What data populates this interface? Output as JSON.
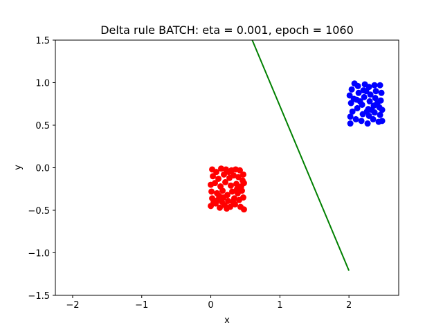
{
  "chart_data": {
    "type": "scatter",
    "title": "Delta rule BATCH: eta = 0.001, epoch = 1060",
    "xlabel": "x",
    "ylabel": "y",
    "xlim": [
      -2.25,
      2.72
    ],
    "ylim": [
      -1.5,
      1.5
    ],
    "xticks": [
      -2,
      -1,
      0,
      1,
      2
    ],
    "yticks": [
      -1.5,
      -1.0,
      -0.5,
      0.0,
      0.5,
      1.0,
      1.5
    ],
    "xtick_labels": [
      "−2",
      "−1",
      "0",
      "1",
      "2"
    ],
    "ytick_labels": [
      "−1.5",
      "−1.0",
      "−0.5",
      "0.0",
      "0.5",
      "1.0",
      "1.5"
    ],
    "grid": false,
    "series": [
      {
        "color": "#ff0000",
        "points": [
          [
            0.02,
            -0.02
          ],
          [
            0.08,
            -0.05
          ],
          [
            0.15,
            -0.01
          ],
          [
            0.22,
            -0.02
          ],
          [
            0.3,
            -0.03
          ],
          [
            0.36,
            -0.02
          ],
          [
            0.42,
            -0.03
          ],
          [
            0.47,
            -0.08
          ],
          [
            0.03,
            -0.1
          ],
          [
            0.11,
            -0.13
          ],
          [
            0.19,
            -0.08
          ],
          [
            0.27,
            -0.12
          ],
          [
            0.33,
            -0.09
          ],
          [
            0.4,
            -0.11
          ],
          [
            0.46,
            -0.15
          ],
          [
            0.0,
            -0.2
          ],
          [
            0.06,
            -0.18
          ],
          [
            0.14,
            -0.22
          ],
          [
            0.21,
            -0.17
          ],
          [
            0.29,
            -0.21
          ],
          [
            0.37,
            -0.19
          ],
          [
            0.44,
            -0.22
          ],
          [
            0.48,
            -0.18
          ],
          [
            0.01,
            -0.28
          ],
          [
            0.09,
            -0.3
          ],
          [
            0.17,
            -0.27
          ],
          [
            0.24,
            -0.32
          ],
          [
            0.31,
            -0.28
          ],
          [
            0.39,
            -0.3
          ],
          [
            0.45,
            -0.27
          ],
          [
            0.02,
            -0.36
          ],
          [
            0.1,
            -0.38
          ],
          [
            0.18,
            -0.35
          ],
          [
            0.25,
            -0.39
          ],
          [
            0.34,
            -0.36
          ],
          [
            0.41,
            -0.38
          ],
          [
            0.47,
            -0.35
          ],
          [
            0.0,
            -0.45
          ],
          [
            0.07,
            -0.42
          ],
          [
            0.13,
            -0.47
          ],
          [
            0.2,
            -0.44
          ],
          [
            0.28,
            -0.46
          ],
          [
            0.35,
            -0.43
          ],
          [
            0.43,
            -0.46
          ],
          [
            0.48,
            -0.49
          ],
          [
            0.04,
            -0.41
          ],
          [
            0.16,
            -0.4
          ],
          [
            0.23,
            -0.48
          ],
          [
            0.38,
            -0.25
          ],
          [
            0.12,
            -0.33
          ],
          [
            0.26,
            -0.05
          ],
          [
            0.32,
            -0.4
          ]
        ]
      },
      {
        "color": "#0000ff",
        "points": [
          [
            2.02,
            0.52
          ],
          [
            2.02,
            0.6
          ],
          [
            2.05,
            0.66
          ],
          [
            2.03,
            0.76
          ],
          [
            2.01,
            0.85
          ],
          [
            2.04,
            0.92
          ],
          [
            2.08,
            0.99
          ],
          [
            2.1,
            0.57
          ],
          [
            2.12,
            0.7
          ],
          [
            2.11,
            0.8
          ],
          [
            2.14,
            0.88
          ],
          [
            2.13,
            0.96
          ],
          [
            2.18,
            0.55
          ],
          [
            2.2,
            0.63
          ],
          [
            2.19,
            0.74
          ],
          [
            2.22,
            0.83
          ],
          [
            2.21,
            0.91
          ],
          [
            2.23,
            0.98
          ],
          [
            2.27,
            0.52
          ],
          [
            2.29,
            0.61
          ],
          [
            2.28,
            0.69
          ],
          [
            2.3,
            0.78
          ],
          [
            2.31,
            0.86
          ],
          [
            2.29,
            0.95
          ],
          [
            2.35,
            0.57
          ],
          [
            2.37,
            0.65
          ],
          [
            2.36,
            0.73
          ],
          [
            2.38,
            0.82
          ],
          [
            2.39,
            0.9
          ],
          [
            2.37,
            0.97
          ],
          [
            2.43,
            0.54
          ],
          [
            2.45,
            0.62
          ],
          [
            2.44,
            0.71
          ],
          [
            2.46,
            0.79
          ],
          [
            2.47,
            0.88
          ],
          [
            2.45,
            0.97
          ],
          [
            2.48,
            0.68
          ],
          [
            2.48,
            0.55
          ],
          [
            2.16,
            0.78
          ],
          [
            2.25,
            0.9
          ],
          [
            2.33,
            0.68
          ],
          [
            2.41,
            0.76
          ],
          [
            2.07,
            0.81
          ],
          [
            2.26,
            0.66
          ]
        ]
      }
    ],
    "line": {
      "color": "#008000",
      "points": [
        [
          0.6,
          1.5
        ],
        [
          2.0,
          -1.21
        ]
      ]
    }
  }
}
